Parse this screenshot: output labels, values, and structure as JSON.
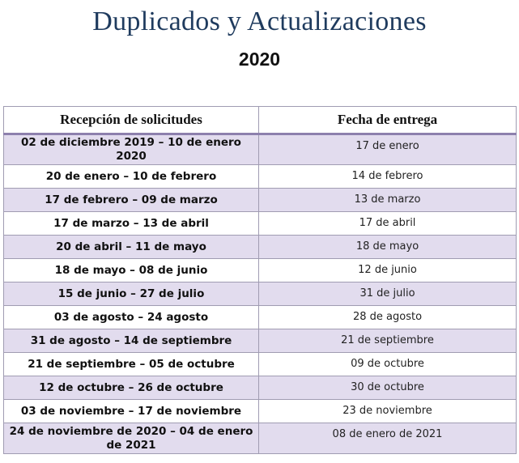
{
  "document": {
    "title": "Duplicados y Actualizaciones",
    "year": "2020"
  },
  "table": {
    "headers": [
      "Recepción de solicitudes",
      "Fecha de entrega"
    ],
    "rows": [
      {
        "range": "02 de diciembre 2019 – 10 de enero 2020",
        "delivery": "17 de enero"
      },
      {
        "range": "20 de enero – 10 de febrero",
        "delivery": "14 de febrero"
      },
      {
        "range": "17 de febrero – 09 de marzo",
        "delivery": "13 de marzo"
      },
      {
        "range": "17 de marzo – 13 de abril",
        "delivery": "17 de abril"
      },
      {
        "range": "20 de abril – 11 de mayo",
        "delivery": "18 de mayo"
      },
      {
        "range": "18 de mayo – 08 de junio",
        "delivery": "12 de junio"
      },
      {
        "range": "15 de junio – 27 de julio",
        "delivery": "31 de julio"
      },
      {
        "range": "03 de agosto – 24 agosto",
        "delivery": "28 de agosto"
      },
      {
        "range": "31 de agosto – 14 de septiembre",
        "delivery": "21 de septiembre"
      },
      {
        "range": "21 de septiembre – 05 de octubre",
        "delivery": "09 de octubre"
      },
      {
        "range": "12 de octubre – 26 de octubre",
        "delivery": "30 de octubre"
      },
      {
        "range": "03 de noviembre – 17 de noviembre",
        "delivery": "23 de noviembre"
      },
      {
        "range": "24 de noviembre de 2020 – 04 de enero de 2021",
        "delivery": "08 de enero de 2021"
      }
    ]
  },
  "colors": {
    "title": "#1f3b5e",
    "stripe": "#e2dcee",
    "header_rule": "#8d80ad",
    "border": "#a09cb2"
  }
}
